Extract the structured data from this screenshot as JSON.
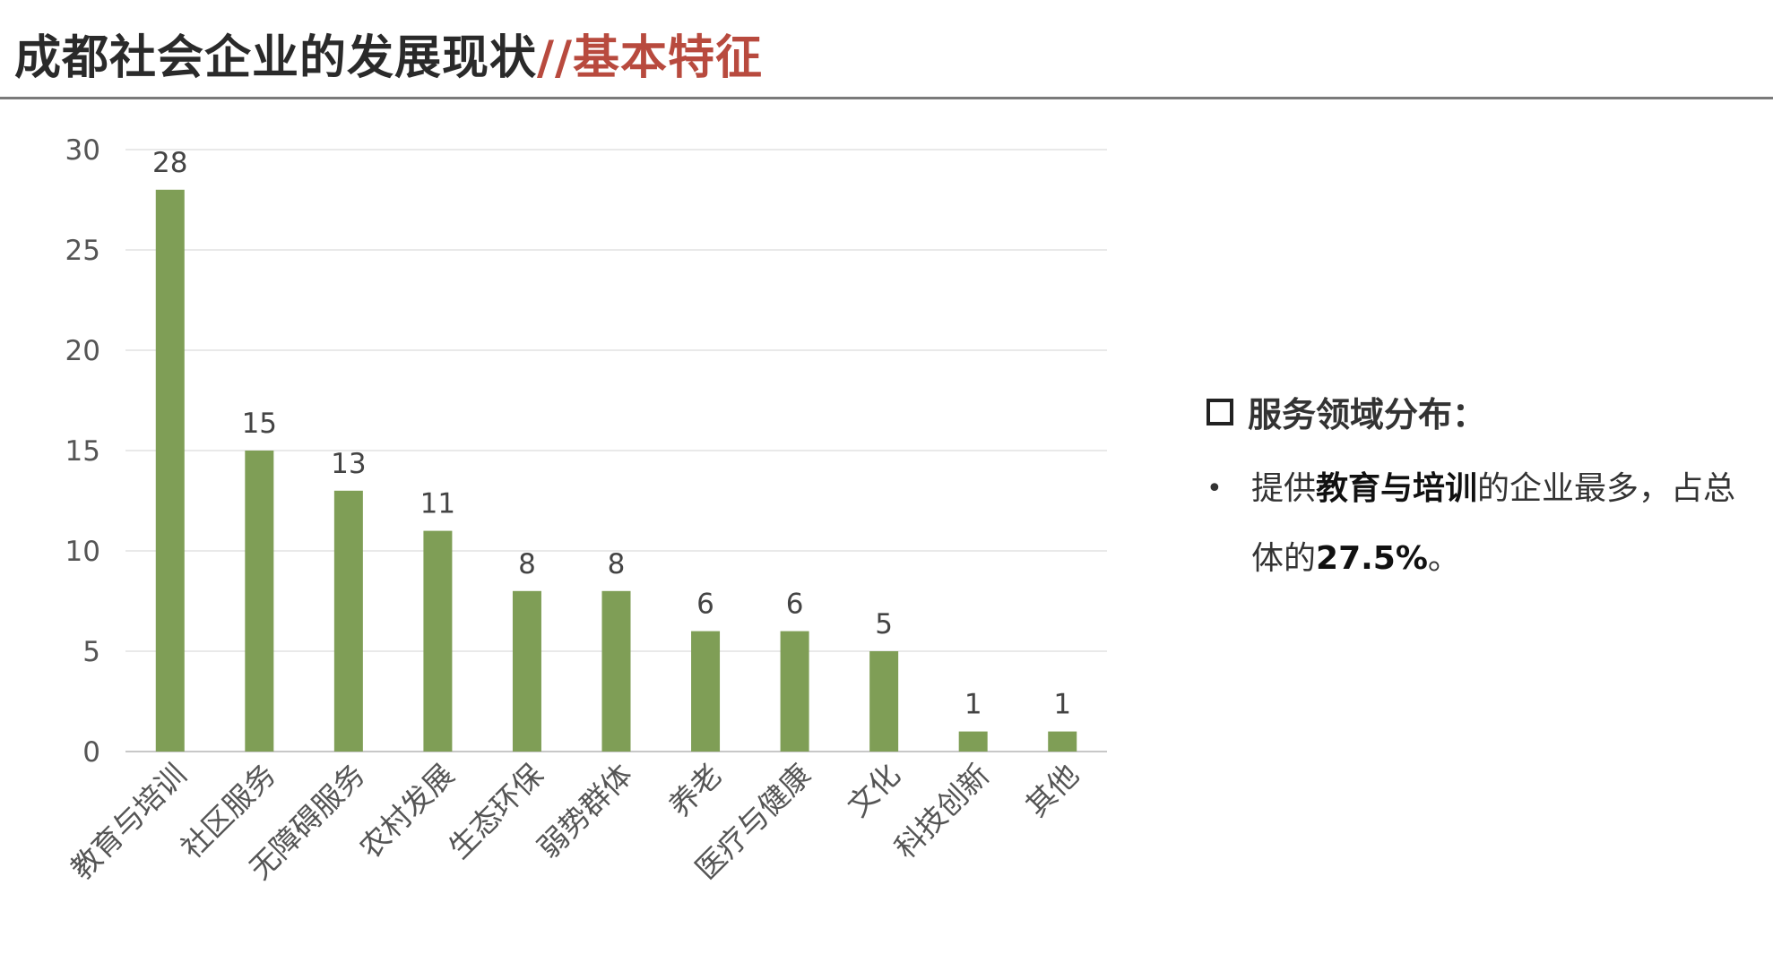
{
  "page": {
    "title_main": "成都社会企业的发展现状",
    "title_accent": "//基本特征",
    "accent_color": "#b84a3e"
  },
  "notes": {
    "heading": "服务领域分布：",
    "bullet": {
      "text1": "提供",
      "bold1": "教育与培训",
      "text2": "的企业最多，占总体的",
      "bold2": "27.5%",
      "text3": "。"
    }
  },
  "chart_data": {
    "type": "bar",
    "title": "",
    "xlabel": "",
    "ylabel": "",
    "ylim": [
      0,
      30
    ],
    "yticks": [
      0,
      5,
      10,
      15,
      20,
      25,
      30
    ],
    "grid": true,
    "legend": "none",
    "bar_color": "#7f9e56",
    "categories": [
      "教育与培训",
      "社区服务",
      "无障碍服务",
      "农村发展",
      "生态环保",
      "弱势群体",
      "养老",
      "医疗与健康",
      "文化",
      "科技创新",
      "其他"
    ],
    "values": [
      28,
      15,
      13,
      11,
      8,
      8,
      6,
      6,
      5,
      1,
      1
    ]
  }
}
